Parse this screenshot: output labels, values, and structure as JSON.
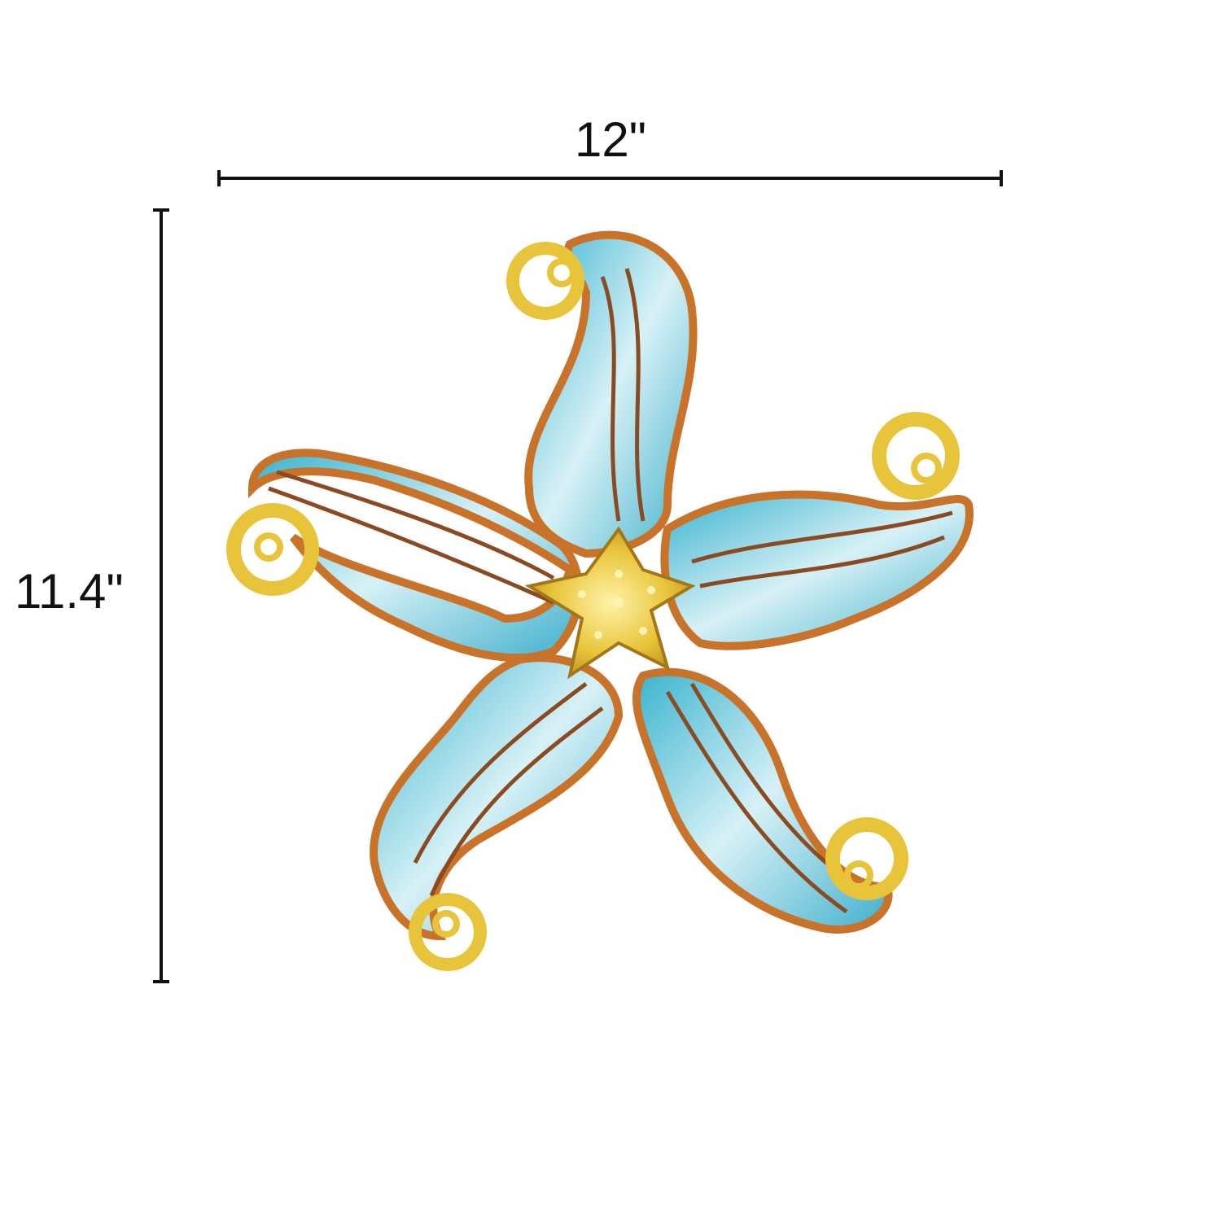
{
  "dimensions": {
    "width_label": "12\"",
    "height_label": "11.4\""
  },
  "product": {
    "icon": "starfish-wall-art",
    "colors": {
      "body_blue": "#5ec3d8",
      "body_light": "#e6f6f9",
      "gold": "#e8c43a",
      "copper": "#c9722a",
      "line": "#111111"
    }
  }
}
